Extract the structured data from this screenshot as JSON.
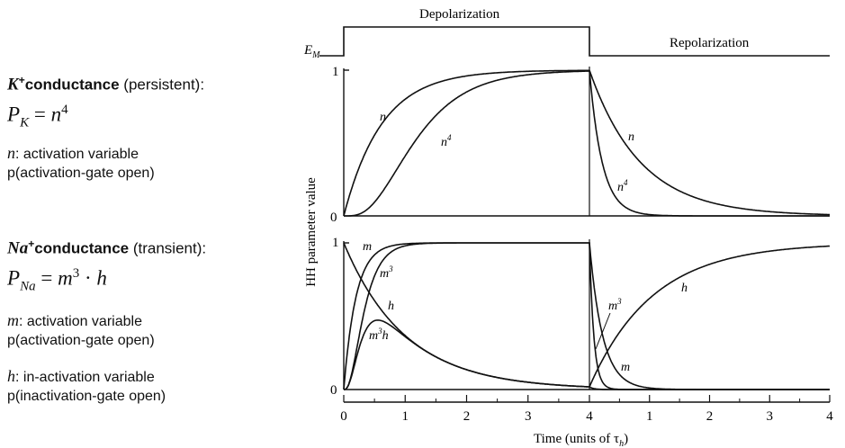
{
  "left_panel": {
    "k": {
      "ion": "K",
      "charge": "+",
      "title": "conductance",
      "qualifier": "(persistent):",
      "eq_lhs": "P",
      "eq_sub": "K",
      "eq_op": "=",
      "eq_rhs": "n",
      "eq_exp": "4",
      "var1_sym": "n",
      "var1_text": ": activation variable",
      "var1_prob": "p(activation-gate open)"
    },
    "na": {
      "ion": "Na",
      "charge": "+",
      "title": "conductance",
      "qualifier": "(transient):",
      "eq_lhs": "P",
      "eq_sub": "Na",
      "eq_op": "=",
      "eq_rhs1": "m",
      "eq_exp": "3",
      "eq_dot": "·",
      "eq_rhs2": "h",
      "var1_sym": "m",
      "var1_text": ": activation variable",
      "var1_prob": "p(activation-gate open)",
      "var2_sym": "h",
      "var2_text": ": in-activation variable",
      "var2_prob": "p(inactivation-gate open)"
    }
  },
  "figure": {
    "voltage": {
      "em_label": "E",
      "em_sub": "M",
      "depol_label": "Depolarization",
      "repol_label": "Repolarization"
    },
    "ylabel": "HH parameter value",
    "xlabel": "Time (units of τ",
    "xlabel_sub": "h",
    "xlabel_close": ")",
    "y_ticks": {
      "one": "1",
      "zero": "0"
    },
    "x_ticks": [
      "0",
      "1",
      "2",
      "3",
      "4",
      "1",
      "2",
      "3",
      "4"
    ],
    "curve_labels": {
      "n_top": "n",
      "n4_top": "n",
      "n4_top_exp": "4",
      "n_right": "n",
      "n4_right": "n",
      "n4_right_exp": "4",
      "m_top": "m",
      "m3_top": "m",
      "m3_top_exp": "3",
      "h_left": "h",
      "m3h": "m",
      "m3h_exp": "3",
      "m3h_h": "h",
      "m3_right": "m",
      "m3_right_exp": "3",
      "m_right": "m",
      "h_right": "h"
    }
  },
  "chart_data": {
    "type": "line",
    "xlabel": "Time (units of τh)",
    "ylabel": "HH parameter value",
    "x_tick_labels": [
      "0",
      "1",
      "2",
      "3",
      "4",
      "1",
      "2",
      "3",
      "4"
    ],
    "ylim": [
      0,
      1
    ],
    "phases": [
      "Depolarization",
      "Repolarization"
    ],
    "step_at": 4,
    "panels": [
      {
        "series": [
          {
            "name": "n",
            "x": [
              0,
              0.5,
              1,
              1.5,
              2,
              2.5,
              3,
              3.5,
              4,
              4.5,
              5,
              5.5,
              6,
              6.5,
              7,
              7.5,
              8
            ],
            "y": [
              0,
              0.55,
              0.8,
              0.91,
              0.96,
              0.98,
              0.99,
              1.0,
              1.0,
              0.55,
              0.3,
              0.17,
              0.09,
              0.05,
              0.03,
              0.015,
              0.01
            ]
          },
          {
            "name": "n⁴",
            "x": [
              0,
              0.5,
              1,
              1.5,
              2,
              2.5,
              3,
              3.5,
              4,
              4.25,
              4.5,
              5,
              5.5,
              6,
              8
            ],
            "y": [
              0,
              0.09,
              0.4,
              0.69,
              0.85,
              0.92,
              0.96,
              0.98,
              0.98,
              0.4,
              0.1,
              0.01,
              0.0,
              0.0,
              0.0
            ]
          }
        ]
      },
      {
        "series": [
          {
            "name": "m",
            "x": [
              0,
              0.25,
              0.5,
              0.75,
              1,
              1.5,
              2,
              3,
              4,
              4.1,
              4.25,
              4.5,
              5,
              5.5,
              6,
              8
            ],
            "y": [
              0,
              0.68,
              0.92,
              0.98,
              0.99,
              1.0,
              1.0,
              1.0,
              1.0,
              0.7,
              0.35,
              0.12,
              0.02,
              0.0,
              0.0,
              0.0
            ]
          },
          {
            "name": "m³",
            "x": [
              0,
              0.25,
              0.5,
              0.75,
              1,
              1.5,
              2,
              3,
              4,
              4.1,
              4.2,
              4.4,
              4.6,
              5,
              8
            ],
            "y": [
              0,
              0.3,
              0.75,
              0.92,
              0.97,
              1.0,
              1.0,
              1.0,
              1.0,
              0.38,
              0.15,
              0.03,
              0.0,
              0.0,
              0.0
            ]
          },
          {
            "name": "h",
            "x": [
              0,
              0.5,
              1,
              1.5,
              2,
              2.5,
              3,
              3.5,
              4,
              4.5,
              5,
              5.5,
              6,
              6.5,
              7,
              7.5,
              8
            ],
            "y": [
              1.0,
              0.61,
              0.37,
              0.22,
              0.14,
              0.08,
              0.05,
              0.03,
              0.02,
              0.4,
              0.63,
              0.78,
              0.86,
              0.92,
              0.95,
              0.97,
              0.99
            ]
          },
          {
            "name": "m³h",
            "x": [
              0,
              0.25,
              0.5,
              0.75,
              1,
              1.5,
              2,
              2.5,
              3,
              3.5,
              4,
              4.2,
              4.5,
              8
            ],
            "y": [
              0,
              0.25,
              0.46,
              0.44,
              0.37,
              0.22,
              0.14,
              0.08,
              0.05,
              0.03,
              0.02,
              0.0,
              0.0,
              0.0
            ]
          }
        ]
      }
    ]
  }
}
